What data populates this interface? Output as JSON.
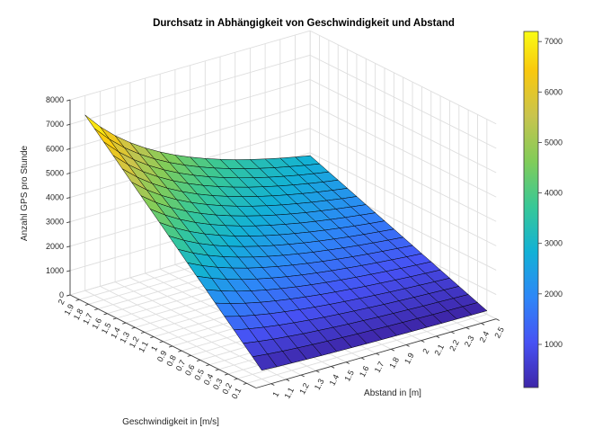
{
  "title": "Durchsatz in Abhängigkeit von Geschwindigkeit und Abstand",
  "chart_data": {
    "type": "surface",
    "x_axis": {
      "label": "Abstand in [m]",
      "lim": [
        0.9,
        2.5
      ],
      "ticks": [
        1,
        1.1,
        1.2,
        1.3,
        1.4,
        1.5,
        1.6,
        1.7,
        1.8,
        1.9,
        2,
        2.1,
        2.2,
        2.3,
        2.4,
        2.5
      ]
    },
    "y_axis": {
      "label": "Geschwindigkeit in [m/s]",
      "lim": [
        0,
        2
      ],
      "ticks": [
        0.1,
        0.2,
        0.3,
        0.4,
        0.5,
        0.6,
        0.7,
        0.8,
        0.9,
        1,
        1.1,
        1.2,
        1.3,
        1.4,
        1.5,
        1.6,
        1.7,
        1.8,
        1.9,
        2
      ]
    },
    "z_axis": {
      "label": "Anzahl GPS pro Stunde",
      "lim": [
        0,
        8000
      ],
      "ticks": [
        0,
        1000,
        2000,
        3000,
        4000,
        5000,
        6000,
        7000,
        8000
      ]
    },
    "x_values": [
      1,
      1.1,
      1.2,
      1.3,
      1.4,
      1.5,
      1.6,
      1.7,
      1.8,
      1.9,
      2,
      2.1,
      2.2,
      2.3,
      2.4,
      2.5
    ],
    "y_values": [
      0.1,
      0.2,
      0.3,
      0.4,
      0.5,
      0.6,
      0.7,
      0.8,
      0.9,
      1,
      1.1,
      1.2,
      1.3,
      1.4,
      1.5,
      1.6,
      1.7,
      1.8,
      1.9,
      2
    ],
    "relation": "z = 3600 * Geschwindigkeit / Abstand",
    "z_matrix": [
      [
        360,
        327,
        300,
        277,
        257,
        240,
        225,
        212,
        200,
        189,
        180,
        171,
        164,
        157,
        150,
        144
      ],
      [
        720,
        655,
        600,
        554,
        514,
        480,
        450,
        424,
        400,
        379,
        360,
        343,
        327,
        313,
        300,
        288
      ],
      [
        1080,
        982,
        900,
        831,
        771,
        720,
        675,
        635,
        600,
        568,
        540,
        514,
        491,
        470,
        450,
        432
      ],
      [
        1440,
        1309,
        1200,
        1108,
        1029,
        960,
        900,
        847,
        800,
        758,
        720,
        686,
        655,
        626,
        600,
        576
      ],
      [
        1800,
        1636,
        1500,
        1385,
        1286,
        1200,
        1125,
        1059,
        1000,
        947,
        900,
        857,
        818,
        783,
        750,
        720
      ],
      [
        2160,
        1964,
        1800,
        1662,
        1543,
        1440,
        1350,
        1271,
        1200,
        1137,
        1080,
        1029,
        982,
        939,
        900,
        864
      ],
      [
        2520,
        2291,
        2100,
        1938,
        1800,
        1680,
        1575,
        1482,
        1400,
        1326,
        1260,
        1200,
        1145,
        1096,
        1050,
        1008
      ],
      [
        2880,
        2618,
        2400,
        2215,
        2057,
        1920,
        1800,
        1694,
        1600,
        1516,
        1440,
        1371,
        1309,
        1252,
        1200,
        1152
      ],
      [
        3240,
        2945,
        2700,
        2492,
        2314,
        2160,
        2025,
        1906,
        1800,
        1705,
        1620,
        1543,
        1473,
        1409,
        1350,
        1296
      ],
      [
        3600,
        3273,
        3000,
        2769,
        2571,
        2400,
        2250,
        2118,
        2000,
        1895,
        1800,
        1714,
        1636,
        1565,
        1500,
        1440
      ],
      [
        3960,
        3600,
        3300,
        3046,
        2829,
        2640,
        2475,
        2329,
        2200,
        2084,
        1980,
        1886,
        1800,
        1722,
        1650,
        1584
      ],
      [
        4320,
        3927,
        3600,
        3323,
        3086,
        2880,
        2700,
        2541,
        2400,
        2274,
        2160,
        2057,
        1964,
        1878,
        1800,
        1728
      ],
      [
        4680,
        4255,
        3900,
        3600,
        3343,
        3120,
        2925,
        2753,
        2600,
        2463,
        2340,
        2229,
        2127,
        2035,
        1950,
        1872
      ],
      [
        5040,
        4582,
        4200,
        3877,
        3600,
        3360,
        3150,
        2965,
        2800,
        2653,
        2520,
        2400,
        2291,
        2191,
        2100,
        2016
      ],
      [
        5400,
        4909,
        4500,
        4154,
        3857,
        3600,
        3375,
        3176,
        3000,
        2842,
        2700,
        2571,
        2455,
        2348,
        2250,
        2160
      ],
      [
        5760,
        5236,
        4800,
        4431,
        4114,
        3840,
        3600,
        3388,
        3200,
        3032,
        2880,
        2743,
        2618,
        2504,
        2400,
        2304
      ],
      [
        6120,
        5564,
        5100,
        4708,
        4371,
        4080,
        3825,
        3600,
        3400,
        3221,
        3060,
        2914,
        2782,
        2661,
        2550,
        2448
      ],
      [
        6480,
        5891,
        5400,
        4985,
        4629,
        4320,
        4050,
        3812,
        3600,
        3411,
        3240,
        3086,
        2945,
        2817,
        2700,
        2592
      ],
      [
        6840,
        6218,
        5700,
        5262,
        4886,
        4560,
        4275,
        4024,
        3800,
        3600,
        3420,
        3257,
        3109,
        2974,
        2850,
        2736
      ],
      [
        7200,
        6545,
        6000,
        5538,
        5143,
        4800,
        4500,
        4235,
        4000,
        3789,
        3600,
        3429,
        3273,
        3130,
        3000,
        2880
      ]
    ],
    "color_range": [
      144,
      7200
    ],
    "colormap": {
      "name": "parula",
      "stops": [
        {
          "t": 0.0,
          "hex": "#3e26a8"
        },
        {
          "t": 0.127,
          "hex": "#4752f4"
        },
        {
          "t": 0.254,
          "hex": "#2d87f7"
        },
        {
          "t": 0.381,
          "hex": "#12b1d6"
        },
        {
          "t": 0.508,
          "hex": "#37c897"
        },
        {
          "t": 0.635,
          "hex": "#81cc59"
        },
        {
          "t": 0.762,
          "hex": "#c8c44e"
        },
        {
          "t": 0.889,
          "hex": "#f9c80e"
        },
        {
          "t": 1.0,
          "hex": "#f9fb15"
        }
      ]
    },
    "colorbar": {
      "ticks": [
        1000,
        2000,
        3000,
        4000,
        5000,
        6000,
        7000
      ]
    }
  }
}
